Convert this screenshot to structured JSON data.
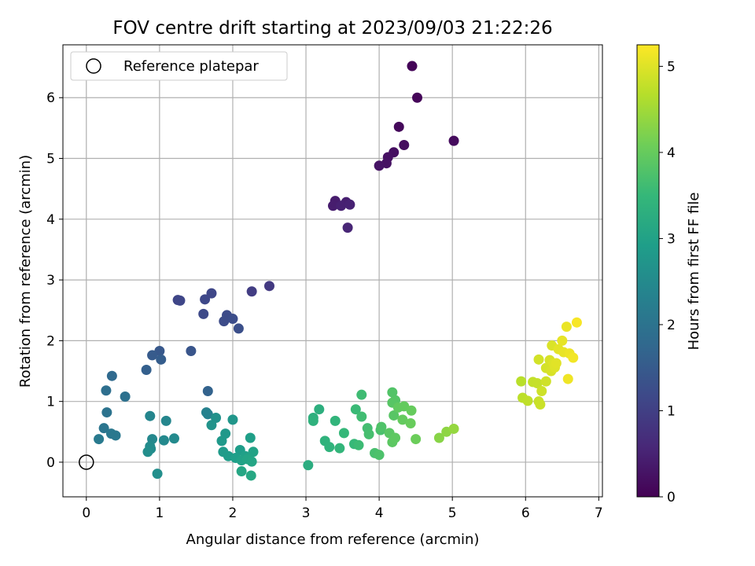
{
  "chart_data": {
    "type": "scatter",
    "title": "FOV centre drift starting at 2023/09/03 21:22:26",
    "xlabel": "Angular distance from reference (arcmin)",
    "ylabel": "Rotation from reference (arcmin)",
    "xlim": [
      -0.32,
      7.05
    ],
    "ylim": [
      -0.57,
      6.87
    ],
    "xticks": [
      0,
      1,
      2,
      3,
      4,
      5,
      6,
      7
    ],
    "yticks": [
      0,
      1,
      2,
      3,
      4,
      5,
      6
    ],
    "grid": true,
    "legend": {
      "position": "top-left",
      "entries": [
        {
          "label": "Reference platepar",
          "marker": "open-circle"
        }
      ]
    },
    "reference_point": [
      0,
      0
    ],
    "colorbar": {
      "label": "Hours from first FF file",
      "colormap": "viridis",
      "range": [
        0,
        5.25
      ],
      "ticks": [
        0,
        1,
        2,
        3,
        4,
        5
      ]
    },
    "points": [
      [
        4.45,
        6.52,
        0.05
      ],
      [
        4.52,
        6.0,
        0.08
      ],
      [
        4.27,
        5.52,
        0.12
      ],
      [
        5.02,
        5.29,
        0.15
      ],
      [
        4.34,
        5.22,
        0.18
      ],
      [
        4.2,
        5.1,
        0.2
      ],
      [
        4.12,
        5.02,
        0.22
      ],
      [
        4.1,
        4.92,
        0.25
      ],
      [
        4.0,
        4.88,
        0.28
      ],
      [
        3.4,
        4.3,
        0.4
      ],
      [
        3.37,
        4.22,
        0.42
      ],
      [
        3.55,
        4.28,
        0.45
      ],
      [
        3.48,
        4.22,
        0.48
      ],
      [
        3.6,
        4.24,
        0.5
      ],
      [
        3.57,
        3.86,
        0.55
      ],
      [
        2.5,
        2.9,
        0.9
      ],
      [
        2.26,
        2.81,
        0.95
      ],
      [
        1.25,
        2.67,
        1.1
      ],
      [
        1.28,
        2.66,
        1.12
      ],
      [
        1.62,
        2.68,
        1.15
      ],
      [
        1.71,
        2.78,
        1.13
      ],
      [
        1.6,
        2.44,
        1.18
      ],
      [
        1.92,
        2.42,
        1.2
      ],
      [
        1.88,
        2.32,
        1.22
      ],
      [
        2.0,
        2.36,
        1.25
      ],
      [
        2.08,
        2.2,
        1.28
      ],
      [
        1.43,
        1.83,
        1.4
      ],
      [
        1.0,
        1.83,
        1.45
      ],
      [
        0.9,
        1.76,
        1.5
      ],
      [
        1.02,
        1.69,
        1.55
      ],
      [
        0.82,
        1.52,
        1.6
      ],
      [
        1.66,
        1.17,
        1.65
      ],
      [
        0.35,
        1.42,
        1.8
      ],
      [
        0.27,
        1.18,
        1.9
      ],
      [
        0.53,
        1.08,
        1.95
      ],
      [
        0.28,
        0.82,
        2.0
      ],
      [
        0.24,
        0.56,
        2.05
      ],
      [
        0.34,
        0.47,
        2.1
      ],
      [
        0.4,
        0.44,
        2.12
      ],
      [
        0.17,
        0.38,
        2.15
      ],
      [
        1.64,
        0.82,
        2.3
      ],
      [
        1.66,
        0.79,
        2.32
      ],
      [
        0.87,
        0.76,
        2.4
      ],
      [
        1.09,
        0.68,
        2.42
      ],
      [
        0.9,
        0.38,
        2.45
      ],
      [
        1.06,
        0.36,
        2.48
      ],
      [
        1.2,
        0.39,
        2.5
      ],
      [
        0.87,
        0.26,
        2.52
      ],
      [
        0.88,
        0.22,
        2.55
      ],
      [
        0.84,
        0.17,
        2.58
      ],
      [
        0.97,
        -0.19,
        2.6
      ],
      [
        1.77,
        0.73,
        2.65
      ],
      [
        1.71,
        0.61,
        2.68
      ],
      [
        2.0,
        0.7,
        2.75
      ],
      [
        1.9,
        0.47,
        2.8
      ],
      [
        1.85,
        0.35,
        2.82
      ],
      [
        1.87,
        0.17,
        2.85
      ],
      [
        1.94,
        0.1,
        2.88
      ],
      [
        2.1,
        0.2,
        2.9
      ],
      [
        2.04,
        0.07,
        2.93
      ],
      [
        2.24,
        0.4,
        2.95
      ],
      [
        2.17,
        0.1,
        2.97
      ],
      [
        2.12,
        0.03,
        3.0
      ],
      [
        2.28,
        0.17,
        3.02
      ],
      [
        2.2,
        0.05,
        3.05
      ],
      [
        2.26,
        0.01,
        3.08
      ],
      [
        2.12,
        -0.15,
        3.1
      ],
      [
        2.25,
        -0.22,
        3.12
      ],
      [
        3.03,
        -0.05,
        3.25
      ],
      [
        3.18,
        0.87,
        3.3
      ],
      [
        3.1,
        0.73,
        3.32
      ],
      [
        3.1,
        0.68,
        3.35
      ],
      [
        3.26,
        0.35,
        3.38
      ],
      [
        3.32,
        0.25,
        3.4
      ],
      [
        3.4,
        0.68,
        3.42
      ],
      [
        3.46,
        0.23,
        3.45
      ],
      [
        3.52,
        0.48,
        3.5
      ],
      [
        3.66,
        0.3,
        3.52
      ],
      [
        3.68,
        0.87,
        3.55
      ],
      [
        3.72,
        0.28,
        3.58
      ],
      [
        3.76,
        1.11,
        3.6
      ],
      [
        3.76,
        0.75,
        3.62
      ],
      [
        3.84,
        0.56,
        3.65
      ],
      [
        3.86,
        0.46,
        3.68
      ],
      [
        3.94,
        0.15,
        3.7
      ],
      [
        4.0,
        0.12,
        3.75
      ],
      [
        4.02,
        0.53,
        3.72
      ],
      [
        4.03,
        0.58,
        3.78
      ],
      [
        4.18,
        1.15,
        3.8
      ],
      [
        4.22,
        1.02,
        3.82
      ],
      [
        4.18,
        0.98,
        3.85
      ],
      [
        4.2,
        0.77,
        3.86
      ],
      [
        4.14,
        0.48,
        3.88
      ],
      [
        4.18,
        0.33,
        3.9
      ],
      [
        4.22,
        0.4,
        3.92
      ],
      [
        4.26,
        0.9,
        3.95
      ],
      [
        4.34,
        0.92,
        3.97
      ],
      [
        4.32,
        0.7,
        3.98
      ],
      [
        4.44,
        0.85,
        4.0
      ],
      [
        4.43,
        0.64,
        4.02
      ],
      [
        4.5,
        0.38,
        4.05
      ],
      [
        4.82,
        0.4,
        4.3
      ],
      [
        4.92,
        0.5,
        4.35
      ],
      [
        5.02,
        0.55,
        4.4
      ],
      [
        5.94,
        1.33,
        4.7
      ],
      [
        5.96,
        1.06,
        4.72
      ],
      [
        6.03,
        1.01,
        4.75
      ],
      [
        6.1,
        1.32,
        4.78
      ],
      [
        6.16,
        1.3,
        4.8
      ],
      [
        6.18,
        1.0,
        4.82
      ],
      [
        6.2,
        0.95,
        4.84
      ],
      [
        6.22,
        1.17,
        4.86
      ],
      [
        6.28,
        1.33,
        4.88
      ],
      [
        6.18,
        1.69,
        4.9
      ],
      [
        6.28,
        1.55,
        4.92
      ],
      [
        6.33,
        1.68,
        4.94
      ],
      [
        6.35,
        1.5,
        4.95
      ],
      [
        6.36,
        1.92,
        4.97
      ],
      [
        6.38,
        1.62,
        4.98
      ],
      [
        6.4,
        1.56,
        5.0
      ],
      [
        6.42,
        1.63,
        5.02
      ],
      [
        6.45,
        1.86,
        5.04
      ],
      [
        6.5,
        2.0,
        5.06
      ],
      [
        6.52,
        1.81,
        5.08
      ],
      [
        6.56,
        2.23,
        5.1
      ],
      [
        6.6,
        1.79,
        5.12
      ],
      [
        6.58,
        1.37,
        5.14
      ],
      [
        6.65,
        1.72,
        5.16
      ],
      [
        6.7,
        2.3,
        5.2
      ]
    ]
  }
}
